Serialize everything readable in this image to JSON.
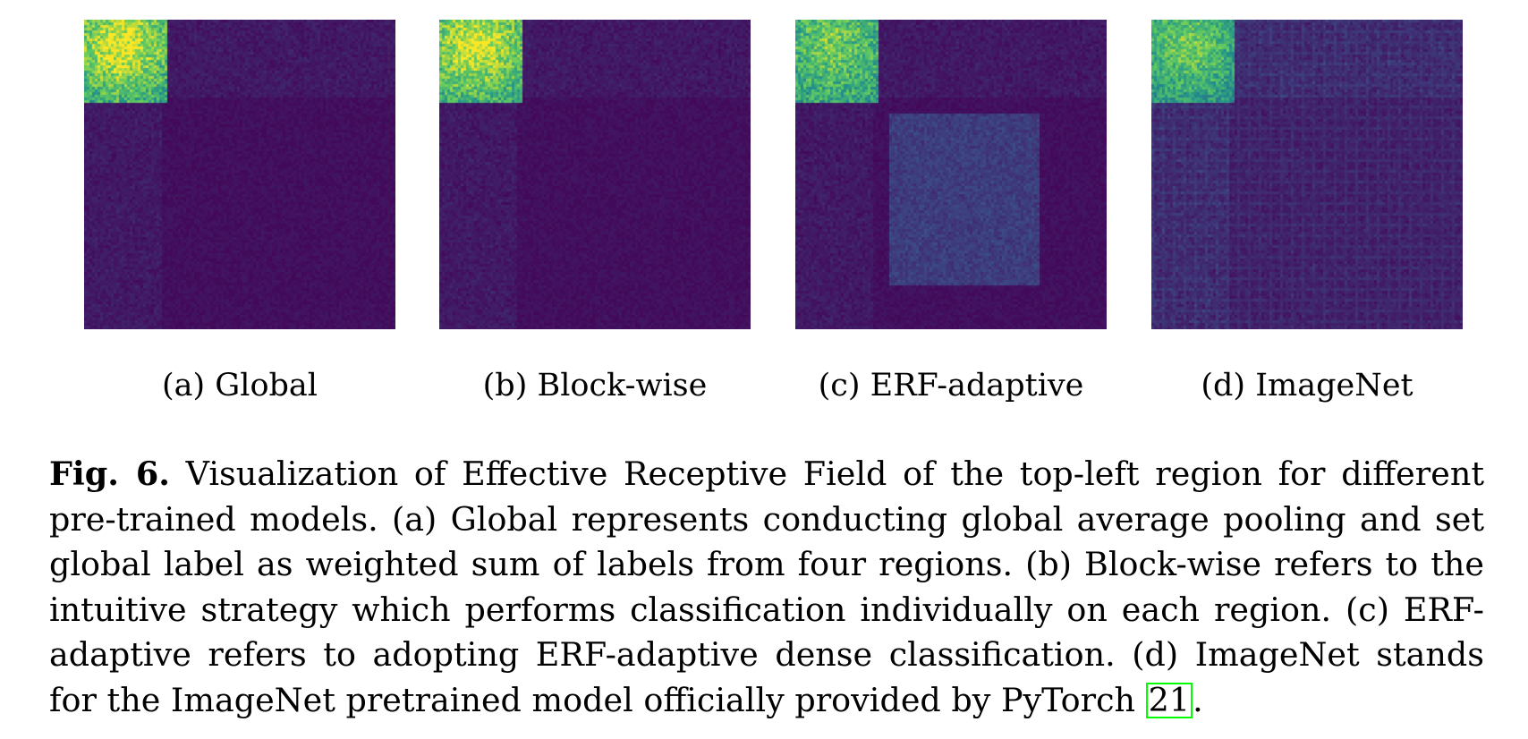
{
  "panels": [
    {
      "caption": "(a) Global",
      "variant": "global"
    },
    {
      "caption": "(b) Block-wise",
      "variant": "blockwise"
    },
    {
      "caption": "(c) ERF-adaptive",
      "variant": "erf"
    },
    {
      "caption": "(d) ImageNet",
      "variant": "imagenet"
    }
  ],
  "figure_caption": {
    "label": "Fig. 6.",
    "text_before_citation": "Visualization of Effective Receptive Field of the top-left region for different pre-trained models. (a) Global represents conducting global average pooling and set global label as weighted sum of labels from four regions. (b) Block-wise refers to the intuitive strategy which performs classification individually on each region. (c) ERF-adaptive refers to adopting ERF-adaptive dense classification. (d) ImageNet stands for the ImageNet pretrained model officially provided by PyTorch",
    "citation": "21",
    "text_after_citation": "."
  },
  "colors": {
    "colormap_low": "#440154",
    "colormap_high": "#fde725",
    "citation_box": "#00ff00"
  }
}
